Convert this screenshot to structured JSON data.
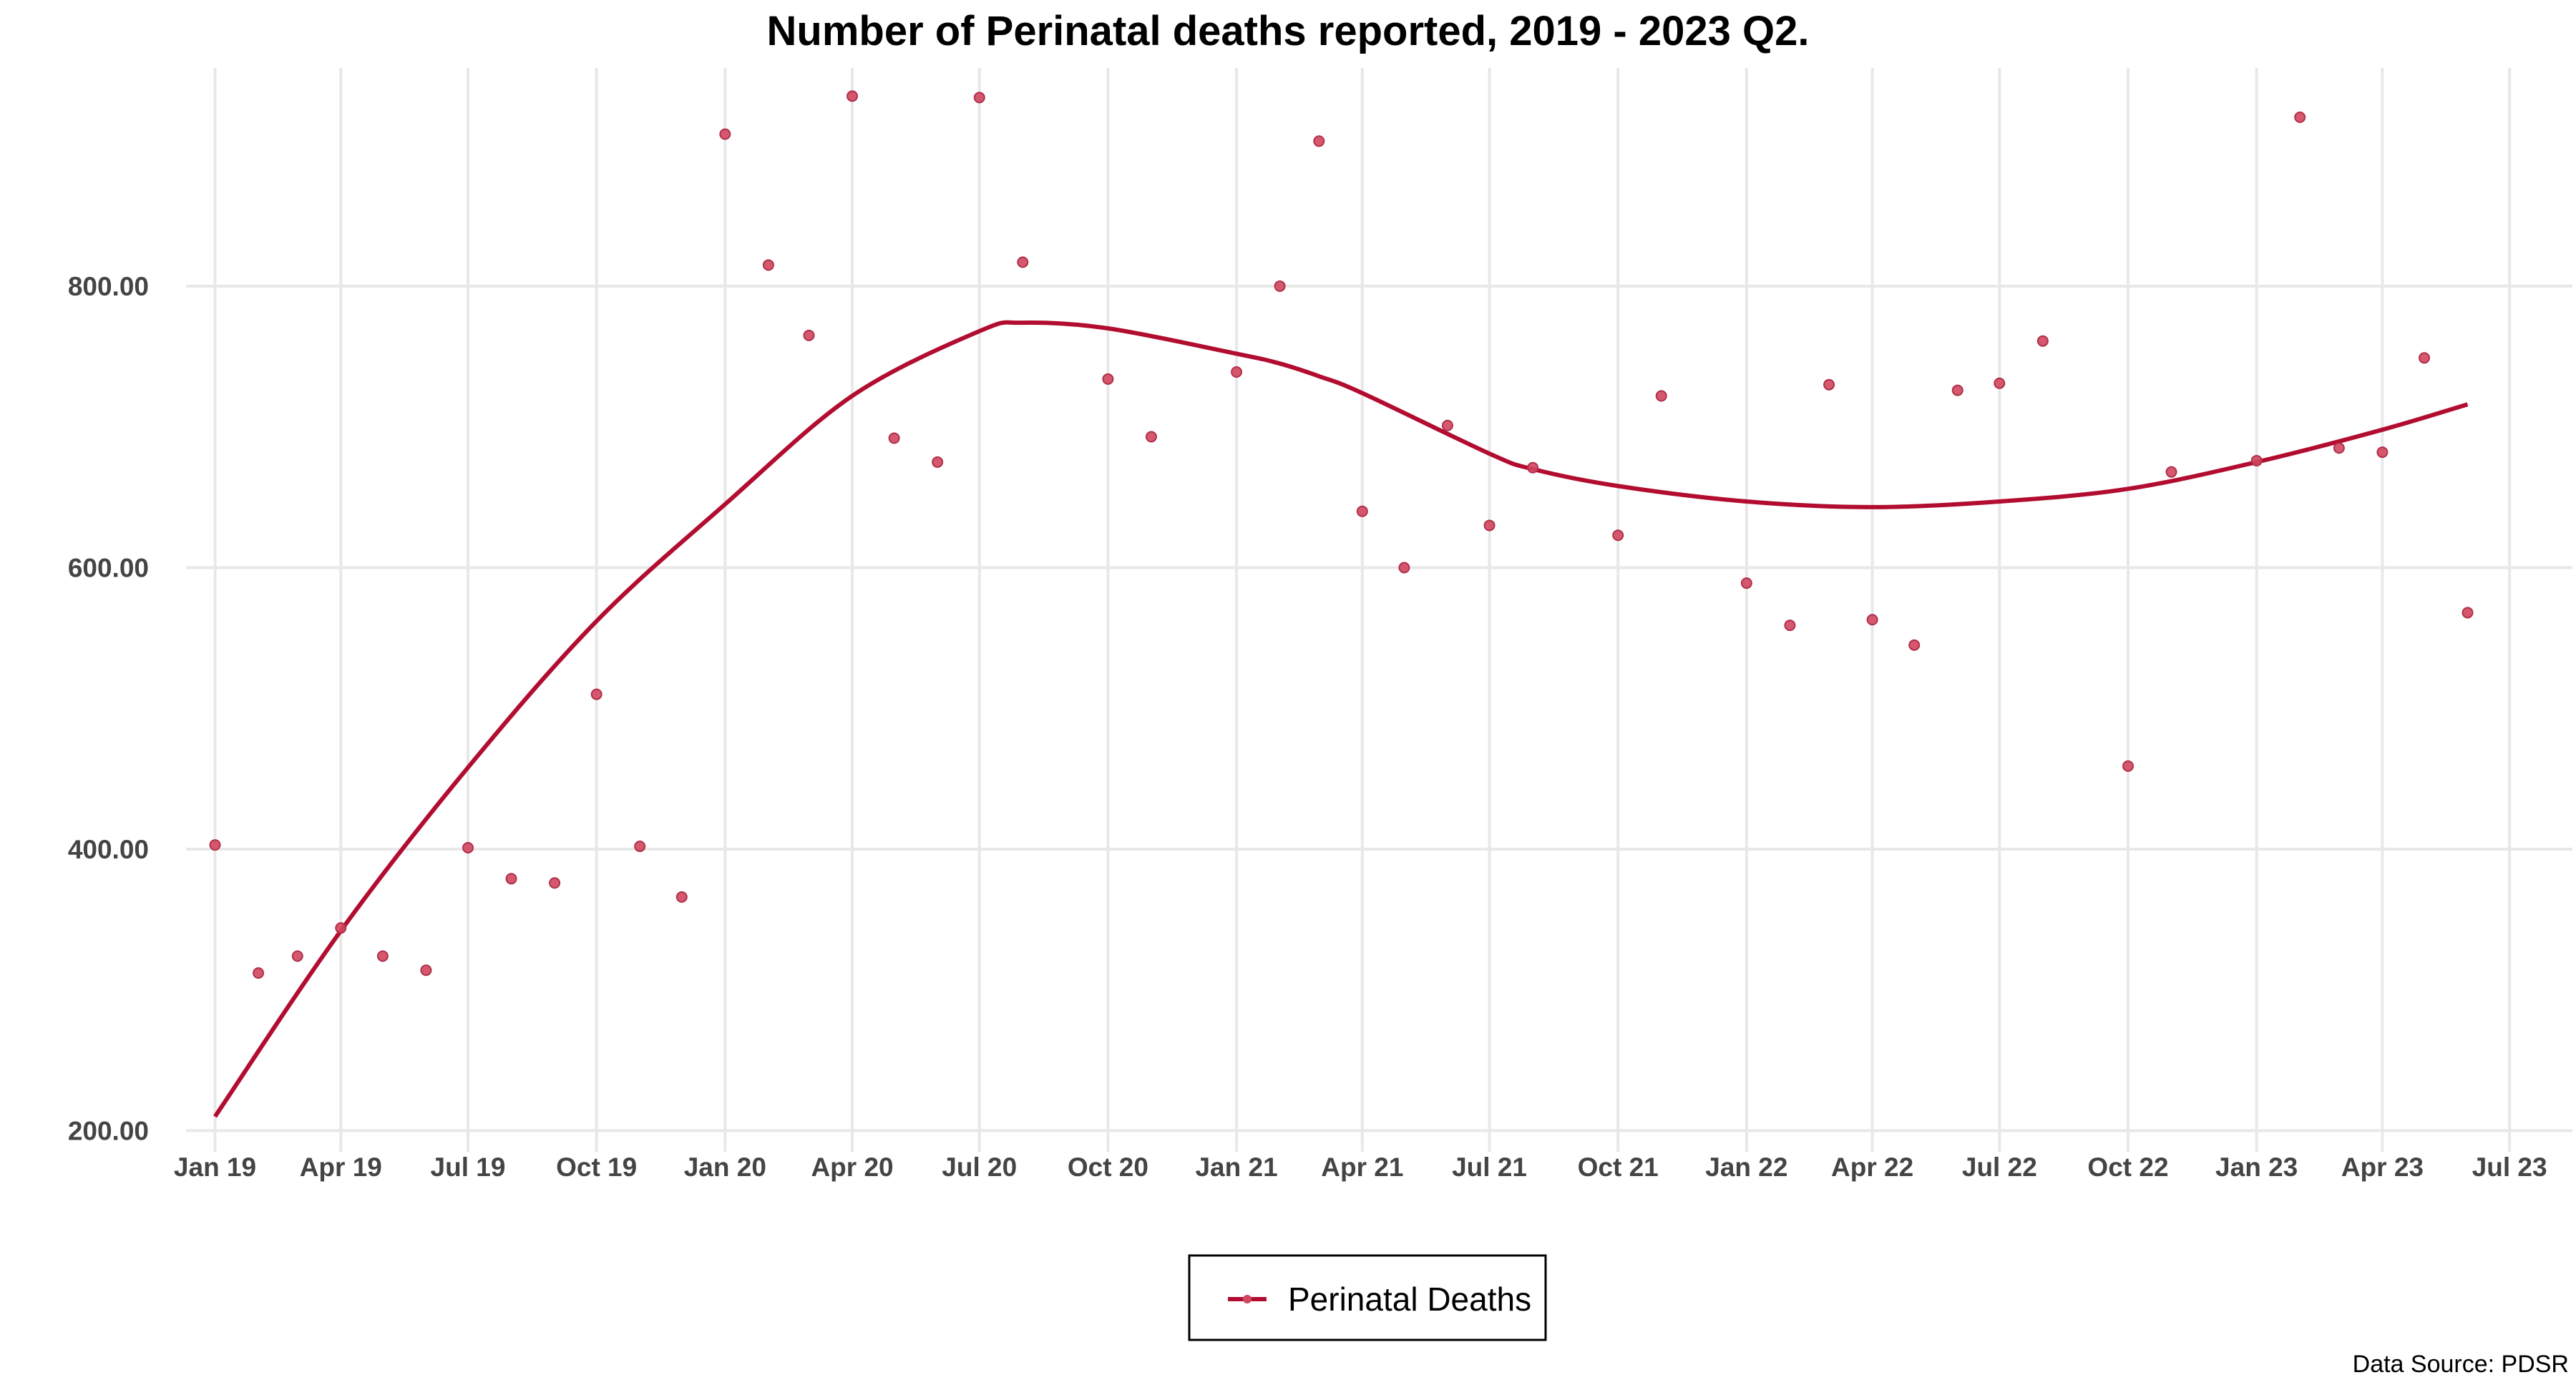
{
  "chart_data": {
    "type": "scatter",
    "title": "Number of Perinatal deaths reported, 2019 - 2023 Q2.",
    "xlabel": "",
    "ylabel": "",
    "caption": "Data Source: PDSR",
    "legend_placement": "bottom-center",
    "grid": true,
    "colors": {
      "point": "#d0465f",
      "line": "#b20d30"
    },
    "x_tick_labels": [
      "Jan 19",
      "Apr 19",
      "Jul 19",
      "Oct 19",
      "Jan 20",
      "Apr 20",
      "Jul 20",
      "Oct 20",
      "Jan 21",
      "Apr 21",
      "Jul 21",
      "Oct 21",
      "Jan 22",
      "Apr 22",
      "Jul 22",
      "Oct 22",
      "Jan 23",
      "Apr 23",
      "Jul 23"
    ],
    "y_tick_labels": [
      "200.00",
      "400.00",
      "600.00",
      "800.00"
    ],
    "y_ticks": [
      200,
      400,
      600,
      800
    ],
    "xlim": [
      "2018-12-01",
      "2023-08-15"
    ],
    "ylim": [
      185,
      955
    ],
    "series": [
      {
        "name": "Perinatal Deaths",
        "x": [
          "2019-01",
          "2019-02",
          "2019-03",
          "2019-04",
          "2019-05",
          "2019-06",
          "2019-07",
          "2019-08",
          "2019-09",
          "2019-10",
          "2019-11",
          "2019-12",
          "2020-01",
          "2020-02",
          "2020-03",
          "2020-04",
          "2020-05",
          "2020-06",
          "2020-07",
          "2020-08",
          "2020-09",
          "2020-10",
          "2020-11",
          "2020-12",
          "2021-01",
          "2021-02",
          "2021-03",
          "2021-04",
          "2021-05",
          "2021-06",
          "2021-07",
          "2021-08",
          "2021-09",
          "2021-10",
          "2021-11",
          "2021-12",
          "2022-01",
          "2022-02",
          "2022-03",
          "2022-04",
          "2022-05",
          "2022-06",
          "2022-07",
          "2022-08",
          "2022-09",
          "2022-10",
          "2022-11",
          "2022-12",
          "2023-01",
          "2023-02",
          "2023-03",
          "2023-04",
          "2023-05",
          "2023-06"
        ],
        "y": [
          403,
          312,
          324,
          344,
          324,
          314,
          401,
          379,
          376,
          510,
          402,
          366,
          908,
          815,
          765,
          935,
          692,
          675,
          934,
          817,
          null,
          734,
          693,
          null,
          739,
          800,
          903,
          640,
          600,
          701,
          630,
          671,
          null,
          623,
          722,
          null,
          589,
          559,
          730,
          563,
          545,
          726,
          731,
          761,
          null,
          459,
          668,
          null,
          676,
          920,
          685,
          682,
          749,
          568
        ],
        "trend": {
          "x": [
            "2019-01",
            "2019-04",
            "2019-07",
            "2019-10",
            "2020-01",
            "2020-04",
            "2020-07",
            "2020-08",
            "2020-10",
            "2021-01",
            "2021-02",
            "2021-03",
            "2021-04",
            "2021-07",
            "2021-08",
            "2021-10",
            "2022-01",
            "2022-04",
            "2022-07",
            "2022-10",
            "2023-01",
            "2023-04",
            "2023-06"
          ],
          "y": [
            210,
            342,
            458,
            562,
            645,
            722,
            768,
            774,
            770,
            752,
            745,
            736,
            724,
            681,
            670,
            658,
            647,
            643,
            647,
            656,
            675,
            698,
            716
          ]
        }
      }
    ]
  }
}
